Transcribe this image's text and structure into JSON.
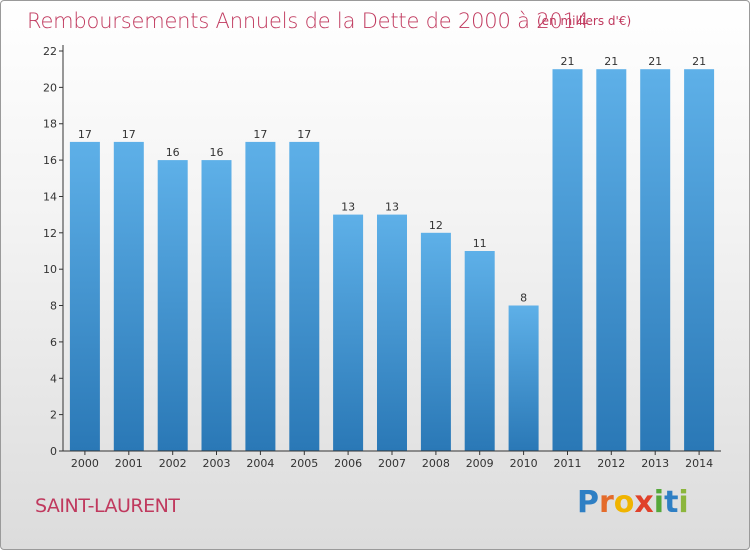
{
  "header": {
    "title": "Remboursements Annuels de la Dette de 2000 à 2014",
    "unit": "(en milliers d'€)"
  },
  "footer": {
    "commune": "SAINT-LAURENT",
    "logo_text": "Proxiti"
  },
  "colors": {
    "bar_light": "#5eb0e8",
    "bar_dark": "#2a78b6",
    "accent": "#c0395e",
    "axis": "#333333"
  },
  "chart_data": {
    "type": "bar",
    "title": "Remboursements Annuels de la Dette de 2000 à 2014",
    "subtitle": "(en milliers d'€)",
    "xlabel": "",
    "ylabel": "",
    "categories": [
      "2000",
      "2001",
      "2002",
      "2003",
      "2004",
      "2005",
      "2006",
      "2007",
      "2008",
      "2009",
      "2010",
      "2011",
      "2012",
      "2013",
      "2014"
    ],
    "values": [
      17,
      17,
      16,
      16,
      17,
      17,
      13,
      13,
      12,
      11,
      8,
      21,
      21,
      21,
      21
    ],
    "ylim": [
      0,
      22
    ],
    "yticks": [
      0,
      2,
      4,
      6,
      8,
      10,
      12,
      14,
      16,
      18,
      20,
      22
    ],
    "grid": false,
    "legend": "none"
  }
}
